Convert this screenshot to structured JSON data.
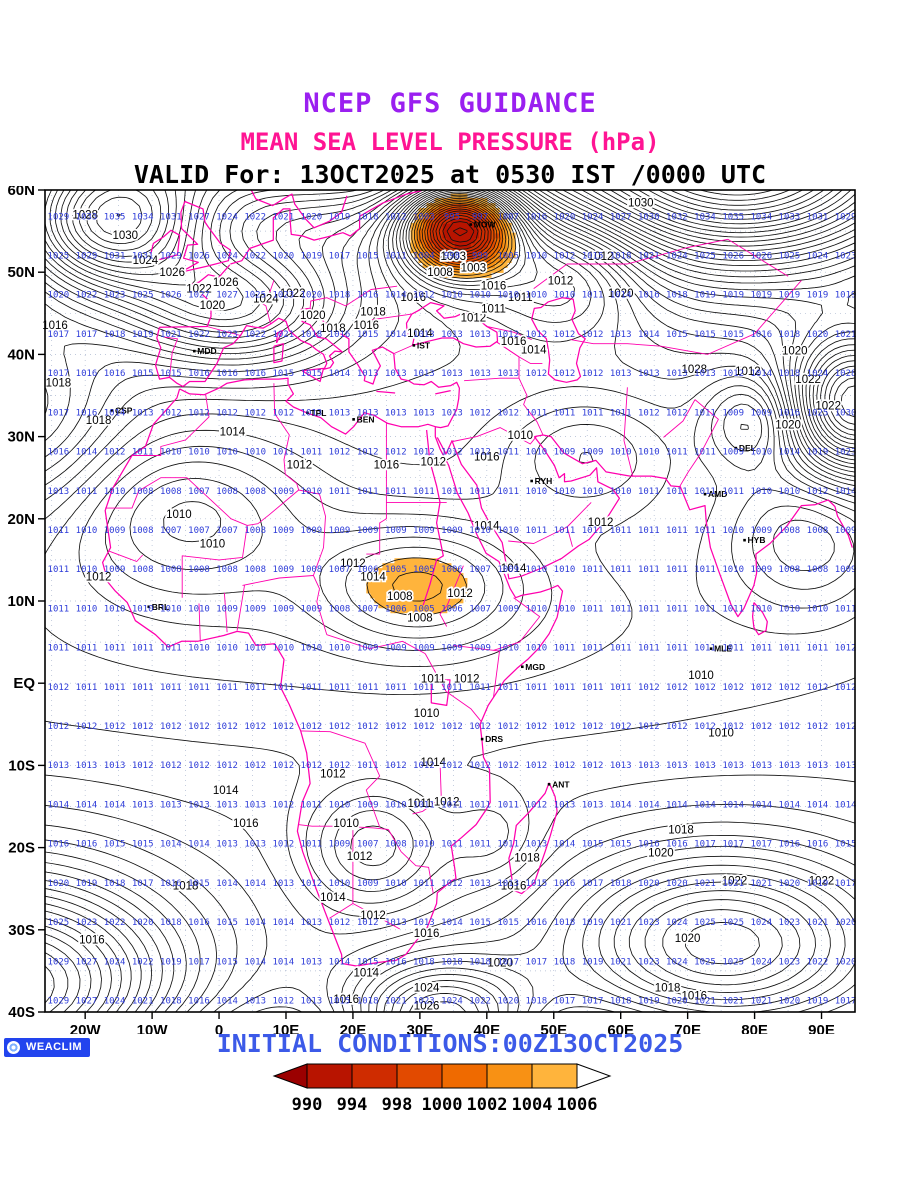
{
  "header": {
    "title": "NCEP GFS GUIDANCE",
    "subtitle": "MEAN SEA LEVEL PRESSURE (hPa)",
    "valid": "VALID For: 13OCT2025 at 0530 IST /0000 UTC"
  },
  "colors": {
    "title": "#9a1ff0",
    "subtitle": "#ff1493",
    "valid": "#000000",
    "coastline": "#ff00ae",
    "contour": "#111111",
    "grid_values": "#2e3cd8",
    "initial": "#3c5ae8",
    "logo_bg": "#2244ee",
    "graticule": "#8fa0c0"
  },
  "chart_data": {
    "type": "contour-map",
    "model": "NCEP GFS",
    "variable": "Mean Sea Level Pressure (hPa)",
    "valid": "13OCT2025 at 0530 IST / 0000 UTC",
    "initial_conditions": "00Z13OCT2025",
    "lon_range": [
      -26,
      95
    ],
    "lat_range": [
      -40,
      60
    ],
    "x_tick_labels": [
      [
        "20W",
        -20
      ],
      [
        "10W",
        -10
      ],
      [
        "0",
        0
      ],
      [
        "10E",
        10
      ],
      [
        "20E",
        20
      ],
      [
        "30E",
        30
      ],
      [
        "40E",
        40
      ],
      [
        "50E",
        50
      ],
      [
        "60E",
        60
      ],
      [
        "70E",
        70
      ],
      [
        "80E",
        80
      ],
      [
        "90E",
        90
      ]
    ],
    "y_tick_labels": [
      [
        "60N",
        60
      ],
      [
        "50N",
        50
      ],
      [
        "40N",
        40
      ],
      [
        "30N",
        30
      ],
      [
        "20N",
        20
      ],
      [
        "10N",
        10
      ],
      [
        "EQ",
        0
      ],
      [
        "10S",
        -10
      ],
      [
        "20S",
        -20
      ],
      [
        "30S",
        -30
      ],
      [
        "40S",
        -40
      ]
    ],
    "contour_interval_hpa": 1,
    "base_pressure_hpa": 1013,
    "pressure_centers": [
      [
        -16,
        56,
        19,
        10,
        6
      ],
      [
        15,
        72,
        25,
        25,
        9
      ],
      [
        36,
        55.5,
        -26,
        6,
        4
      ],
      [
        78,
        65,
        30,
        20,
        10
      ],
      [
        2,
        46,
        12,
        11,
        5
      ],
      [
        52,
        50,
        -7,
        8,
        5
      ],
      [
        -30,
        33,
        6,
        10,
        8
      ],
      [
        -5,
        21,
        -5,
        13,
        7
      ],
      [
        30,
        12,
        -6,
        10,
        5
      ],
      [
        55,
        28,
        -3.5,
        9,
        5
      ],
      [
        95,
        34,
        18,
        7,
        6
      ],
      [
        80,
        32,
        -6,
        5,
        4
      ],
      [
        88,
        18,
        -5,
        8,
        6
      ],
      [
        20,
        8,
        -2.5,
        60,
        12
      ],
      [
        23,
        -20,
        -5.5,
        7,
        5
      ],
      [
        41,
        -19,
        -2.5,
        5,
        4
      ],
      [
        -32,
        -38,
        20,
        18,
        10
      ],
      [
        75,
        -32,
        13,
        17,
        8
      ],
      [
        33,
        -42,
        16,
        10,
        5.5
      ],
      [
        20,
        -62,
        -28,
        45,
        11
      ]
    ],
    "fill_below_hpa": 1006,
    "fill_thresholds": [
      990,
      994,
      998,
      1000,
      1002,
      1004,
      1006
    ],
    "grid_value_sampling": {
      "lon_start": -24,
      "lon_step": 4.2,
      "cols": 29,
      "lat_start": 56.8,
      "lat_step": 4.77,
      "rows": 21
    },
    "contour_labels": [
      [
        "1028",
        -20,
        57
      ],
      [
        "1030",
        -14,
        54.5
      ],
      [
        "1024",
        -11,
        51.5
      ],
      [
        "1026",
        -7,
        50
      ],
      [
        "1022",
        -3,
        48
      ],
      [
        "1020",
        -1,
        46
      ],
      [
        "1026",
        1,
        48.8
      ],
      [
        "1024",
        7,
        46.8
      ],
      [
        "1022",
        11,
        47.5
      ],
      [
        "1020",
        14,
        44.8
      ],
      [
        "1018",
        17,
        43.2
      ],
      [
        "1016",
        22,
        43.6
      ],
      [
        "1014",
        30,
        42.6
      ],
      [
        "1018",
        23,
        45.2
      ],
      [
        "1016",
        29,
        47
      ],
      [
        "1012",
        38,
        44.5
      ],
      [
        "1008",
        33,
        50
      ],
      [
        "1003",
        35,
        52
      ],
      [
        "1003",
        38,
        50.6
      ],
      [
        "1016",
        41,
        48.4
      ],
      [
        "1011",
        45,
        47
      ],
      [
        "1012",
        51,
        49
      ],
      [
        "1012",
        57,
        52
      ],
      [
        "1020",
        60,
        47.5
      ],
      [
        "1030",
        63,
        58.5
      ],
      [
        "1011",
        41,
        45.6
      ],
      [
        "1014",
        47,
        40.6
      ],
      [
        "1016",
        44,
        41.6
      ],
      [
        "1028",
        71,
        38.2
      ],
      [
        "1012",
        79,
        38
      ],
      [
        "1020",
        86,
        40.5
      ],
      [
        "1022",
        88,
        37
      ],
      [
        "1020",
        85,
        31.5
      ],
      [
        "1022",
        91,
        33.8
      ],
      [
        "1018",
        -18,
        32
      ],
      [
        "1016",
        -24.5,
        43.6
      ],
      [
        "1018",
        -24,
        36.6
      ],
      [
        "1014",
        2,
        30.6
      ],
      [
        "1012",
        12,
        26.6
      ],
      [
        "1016",
        25,
        26.6
      ],
      [
        "1010",
        45,
        30.2
      ],
      [
        "1016",
        40,
        27.6
      ],
      [
        "1012",
        32,
        27
      ],
      [
        "1010",
        -6,
        20.6
      ],
      [
        "1010",
        -1,
        17
      ],
      [
        "1012",
        -18,
        13
      ],
      [
        "1012",
        20,
        14.6
      ],
      [
        "1014",
        23,
        13
      ],
      [
        "1008",
        27,
        10.6
      ],
      [
        "1012",
        36,
        11
      ],
      [
        "1014",
        44,
        14
      ],
      [
        "1014",
        40,
        19.2
      ],
      [
        "1012",
        57,
        19.6
      ],
      [
        "1008",
        30,
        8
      ],
      [
        "1012",
        37,
        0.6
      ],
      [
        "1011",
        32,
        0.6
      ],
      [
        "1010",
        72,
        1
      ],
      [
        "1010",
        31,
        -3.6
      ],
      [
        "1014",
        32,
        -9.6
      ],
      [
        "1010",
        75,
        -6
      ],
      [
        "1012",
        17,
        -11
      ],
      [
        "1014",
        1,
        -13
      ],
      [
        "1011",
        30,
        -14.6
      ],
      [
        "1012",
        34,
        -14.4
      ],
      [
        "1016",
        4,
        -17
      ],
      [
        "1010",
        19,
        -17
      ],
      [
        "1012",
        21,
        -21
      ],
      [
        "1018",
        -5,
        -24.6
      ],
      [
        "1018",
        46,
        -21.2
      ],
      [
        "1016",
        44,
        -24.6
      ],
      [
        "1022",
        77,
        -24
      ],
      [
        "1020",
        66,
        -20.6
      ],
      [
        "1018",
        69,
        -17.8
      ],
      [
        "1020",
        70,
        -31
      ],
      [
        "1022",
        90,
        -24
      ],
      [
        "1016",
        -19,
        -31.2
      ],
      [
        "1012",
        23,
        -28.2
      ],
      [
        "1014",
        17,
        -26
      ],
      [
        "1016",
        31,
        -30.4
      ],
      [
        "1014",
        22,
        -35.2
      ],
      [
        "1016",
        19,
        -38.4
      ],
      [
        "1020",
        42,
        -34
      ],
      [
        "1024",
        31,
        -37
      ],
      [
        "1026",
        31,
        -39.2
      ],
      [
        "1018",
        67,
        -37
      ],
      [
        "1016",
        71,
        -38
      ]
    ],
    "city_markers": [
      [
        "MOW",
        37.6,
        55.8
      ],
      [
        "MDD",
        -3.7,
        40.4
      ],
      [
        "IST",
        29.1,
        41.1
      ],
      [
        "TPL",
        13.2,
        32.9
      ],
      [
        "BEN",
        20.1,
        32.1
      ],
      [
        "CSP",
        -16,
        33.2
      ],
      [
        "RYH",
        46.7,
        24.6
      ],
      [
        "DEL",
        77.2,
        28.6
      ],
      [
        "AMD",
        72.6,
        23
      ],
      [
        "HYB",
        78.5,
        17.4
      ],
      [
        "MLE",
        73.5,
        4.2
      ],
      [
        "MGD",
        45.3,
        2
      ],
      [
        "DRS",
        39.3,
        -6.8
      ],
      [
        "ANT",
        49.3,
        -12.3
      ],
      [
        "BRL",
        -10.5,
        9.3
      ]
    ]
  },
  "footer": {
    "logo_text": "WEACLIM",
    "initial_conditions": "INITIAL CONDITIONS:00Z13OCT2025",
    "colorbar": {
      "labels": [
        "990",
        "994",
        "998",
        "1000",
        "1002",
        "1004",
        "1006"
      ],
      "colors": [
        "#9b0000",
        "#b81400",
        "#cf2c00",
        "#e24a00",
        "#ef6a00",
        "#f89114",
        "#ffb43c",
        "#ffffff"
      ]
    }
  }
}
